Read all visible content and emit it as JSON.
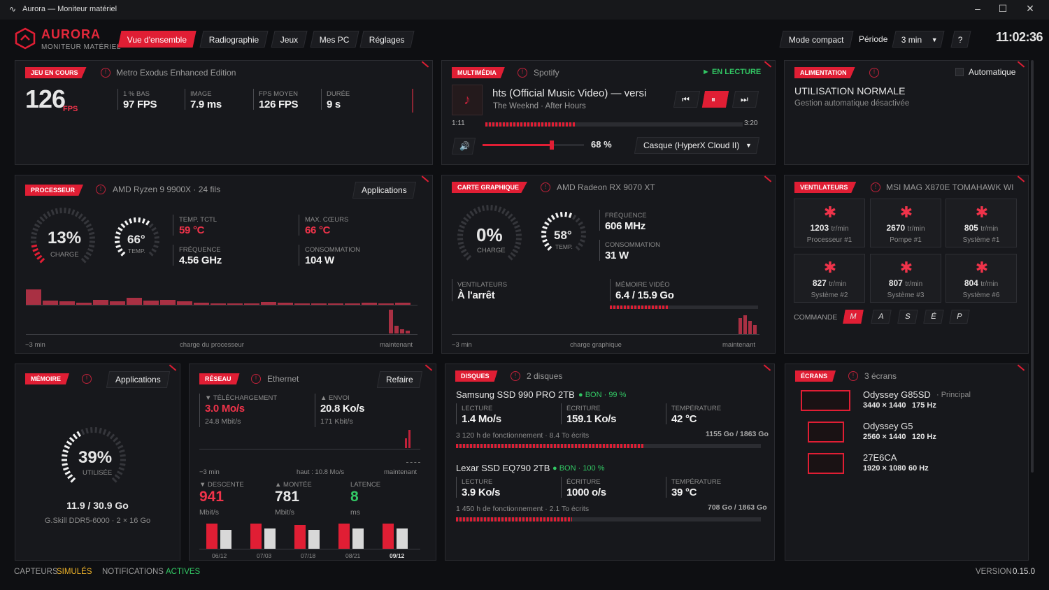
{
  "window": {
    "title": "Aurora — Moniteur matériel"
  },
  "brand": {
    "name": "AURORA",
    "subtitle": "MONITEUR MATÉRIEL"
  },
  "tabs": [
    {
      "label": "Vue d'ensemble"
    },
    {
      "label": "Radiographie"
    },
    {
      "label": "Jeux"
    },
    {
      "label": "Mes PC"
    },
    {
      "label": "Réglages"
    }
  ],
  "header": {
    "compact": "Mode compact",
    "period_label": "Période",
    "period_value": "3 min",
    "help": "?",
    "clock": "11:02:36"
  },
  "game": {
    "badge": "JEU EN COURS",
    "name": "Metro Exodus Enhanced Edition",
    "fps": "126",
    "fps_unit": "FPS",
    "stats": [
      {
        "label": "1 % BAS",
        "value": "97 FPS"
      },
      {
        "label": "IMAGE",
        "value": "7.9 ms"
      },
      {
        "label": "FPS MOYEN",
        "value": "126 FPS"
      },
      {
        "label": "DURÉE",
        "value": "9 s"
      }
    ]
  },
  "media": {
    "badge": "MULTIMÉDIA",
    "source": "Spotify",
    "status": "► EN LECTURE",
    "title": "hts (Official Music Video) — versi",
    "artist": "The Weeknd · After Hours",
    "elapsed": "1:11",
    "total": "3:20",
    "progress": 0.35,
    "volume": "68 %",
    "volume_level": 0.68,
    "output": "Casque (HyperX Cloud II)"
  },
  "power": {
    "badge": "ALIMENTATION",
    "auto": "Automatique",
    "mode": "UTILISATION NORMALE",
    "note": "Gestion automatique désactivée"
  },
  "cpu": {
    "badge": "PROCESSEUR",
    "name": "AMD Ryzen 9 9900X · 24 fils",
    "apps": "Applications",
    "load": "13%",
    "load_label": "CHARGE",
    "load_level": 0.13,
    "temp": "66°",
    "temp_label": "TEMP.",
    "temp_level": 0.66,
    "stats": [
      {
        "label": "TEMP. TCTL",
        "value": "59 °C"
      },
      {
        "label": "MAX. CŒURS",
        "value": "66 °C"
      },
      {
        "label": "FRÉQUENCE",
        "value": "4.56 GHz"
      },
      {
        "label": "CONSOMMATION",
        "value": "104 W"
      }
    ],
    "axis_left": "−3 min",
    "axis_mid": "charge du processeur",
    "axis_right": "maintenant",
    "history": [
      22,
      6,
      5,
      3,
      7,
      5,
      10,
      6,
      7,
      5,
      3,
      2,
      2,
      2,
      4,
      3,
      2,
      2,
      2,
      2,
      3,
      2,
      3
    ],
    "recent": [
      32,
      10,
      6,
      4
    ]
  },
  "gpu": {
    "badge": "CARTE GRAPHIQUE",
    "name": "AMD Radeon RX 9070 XT",
    "load": "0%",
    "load_label": "CHARGE",
    "load_level": 0,
    "temp": "58°",
    "temp_label": "TEMP.",
    "temp_level": 0.58,
    "stats": [
      {
        "label": "FRÉQUENCE",
        "value": "606 MHz"
      },
      {
        "label": "CONSOMMATION",
        "value": "31 W"
      }
    ],
    "fans_label": "VENTILATEURS",
    "fans_value": "À l'arrêt",
    "vram_label": "MÉMOIRE VIDÉO",
    "vram_value": "6.4 / 15.9 Go",
    "vram_level": 0.4,
    "axis_left": "−3 min",
    "axis_mid": "charge graphique",
    "axis_right": "maintenant",
    "recent": [
      24,
      28,
      20,
      14
    ]
  },
  "fans": {
    "badge": "VENTILATEURS",
    "board": "MSI MAG X870E TOMAHAWK WI",
    "unit": "tr/min",
    "items": [
      {
        "rpm": "1203",
        "name": "Processeur #1"
      },
      {
        "rpm": "2670",
        "name": "Pompe #1"
      },
      {
        "rpm": "805",
        "name": "Système #1"
      },
      {
        "rpm": "827",
        "name": "Système #2"
      },
      {
        "rpm": "807",
        "name": "Système #3"
      },
      {
        "rpm": "804",
        "name": "Système #6"
      }
    ],
    "command_label": "COMMANDE",
    "commands": [
      "M",
      "A",
      "S",
      "É",
      "P"
    ]
  },
  "memory": {
    "badge": "MÉMOIRE",
    "apps": "Applications",
    "percent": "39%",
    "percent_label": "UTILISÉE",
    "level": 0.39,
    "used": "11.9 / 30.9 Go",
    "kit": "G.Skill DDR5-6000 · 2 × 16 Go"
  },
  "network": {
    "badge": "RÉSEAU",
    "iface": "Ethernet",
    "redo": "Refaire",
    "down_label": "▼ TÉLÉCHARGEMENT",
    "down_value": "3.0 Mo/s",
    "down_sub": "24.8 Mbit/s",
    "up_label": "▲ ENVOI",
    "up_value": "20.8 Ko/s",
    "up_sub": "171 Kbit/s",
    "axis_left": "−3 min",
    "axis_mid": "haut : 10.8 Mo/s",
    "axis_right": "maintenant",
    "speed": [
      {
        "label": "▼ DESCENTE",
        "value": "941",
        "unit": "Mbit/s"
      },
      {
        "label": "▲ MONTÉE",
        "value": "781",
        "unit": "Mbit/s"
      },
      {
        "label": "LATENCE",
        "value": "8",
        "unit": "ms"
      }
    ],
    "history": [
      {
        "date": "06/12",
        "down": 1.0,
        "up": 0.75
      },
      {
        "date": "07/03",
        "down": 1.0,
        "up": 0.8
      },
      {
        "date": "07/18",
        "down": 0.95,
        "up": 0.75
      },
      {
        "date": "08/21",
        "down": 1.0,
        "up": 0.8
      },
      {
        "date": "09/12",
        "down": 1.0,
        "up": 0.8
      }
    ]
  },
  "disks": {
    "badge": "DISQUES",
    "count": "2 disques",
    "items": [
      {
        "name": "Samsung SSD 990 PRO 2TB",
        "health": "● BON · 99 %",
        "read": "1.4 Mo/s",
        "write": "159.1 Ko/s",
        "temp": "42 °C",
        "usage": "3 120 h de fonctionnement · 8.4 To écrits",
        "capacity": "1155 Go / 1863 Go",
        "fill": 0.62
      },
      {
        "name": "Lexar SSD EQ790 2TB",
        "health": "● BON · 100 %",
        "read": "3.9 Ko/s",
        "write": "1000 o/s",
        "temp": "39 °C",
        "usage": "1 450 h de fonctionnement · 2.1 To écrits",
        "capacity": "708 Go / 1863 Go",
        "fill": 0.38
      }
    ],
    "read_label": "LECTURE",
    "write_label": "ÉCRITURE",
    "temp_label": "TEMPÉRATURE"
  },
  "screens": {
    "badge": "ÉCRANS",
    "count": "3 écrans",
    "items": [
      {
        "name": "Odyssey G85SD",
        "tag": "· Principal",
        "res": "3440 × 1440",
        "hz": "175 Hz"
      },
      {
        "name": "Odyssey G5",
        "tag": "",
        "res": "2560 × 1440",
        "hz": "120 Hz"
      },
      {
        "name": "27E6CA",
        "tag": "",
        "res": "1920 × 1080",
        "hz": "60 Hz"
      }
    ]
  },
  "footer": {
    "sensors": "CAPTEURS",
    "sensors_state": "SIMULÉS",
    "notif": "NOTIFICATIONS",
    "notif_state": "ACTIVES",
    "version_label": "VERSION",
    "version": "0.15.0"
  },
  "colors": {
    "accent": "#e01e34",
    "ok": "#32c864",
    "warn": "#f0b429"
  }
}
